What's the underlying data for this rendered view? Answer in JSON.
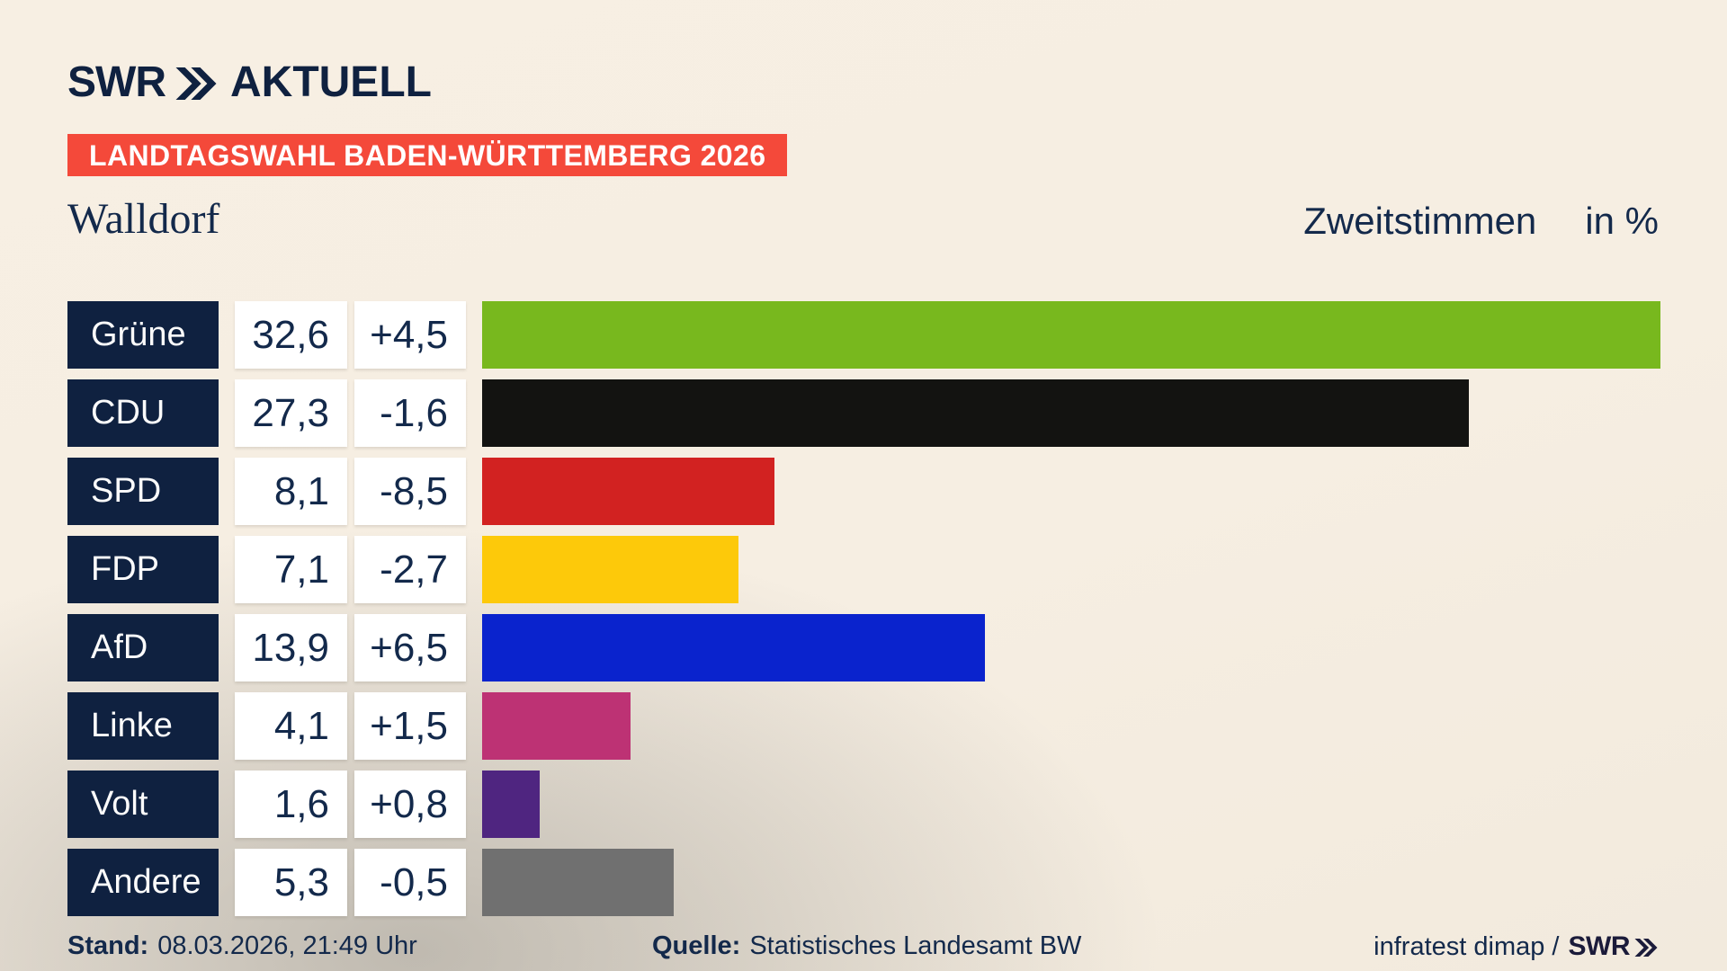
{
  "colors": {
    "background_cream": "#f6eee2",
    "background_shade": "#cfccc4",
    "navy_box": "#0f2140",
    "text_navy": "#13294b",
    "badge_red": "#f4493a",
    "box_white": "#ffffff"
  },
  "header": {
    "logo_swr": "SWR",
    "logo_suffix": "AKTUELL",
    "badge": "LANDTAGSWAHL BADEN-WÜRTTEMBERG 2026"
  },
  "title": {
    "region": "Walldorf",
    "measure": "Zweitstimmen",
    "unit": "in %"
  },
  "chart_data": {
    "type": "bar",
    "orientation": "horizontal",
    "title": "Walldorf — Zweitstimmen in %",
    "categories": [
      "Grüne",
      "CDU",
      "SPD",
      "FDP",
      "AfD",
      "Linke",
      "Volt",
      "Andere"
    ],
    "series": [
      {
        "name": "Zweitstimmen in %",
        "values": [
          32.6,
          27.3,
          8.1,
          7.1,
          13.9,
          4.1,
          1.6,
          5.3
        ]
      },
      {
        "name": "Veränderung in Prozentpunkten",
        "values": [
          4.5,
          -1.6,
          -8.5,
          -2.7,
          6.5,
          1.5,
          0.8,
          -0.5
        ]
      }
    ],
    "value_labels": [
      "32,6",
      "27,3",
      "8,1",
      "7,1",
      "13,9",
      "4,1",
      "1,6",
      "5,3"
    ],
    "change_labels": [
      "+4,5",
      "-1,6",
      "-8,5",
      "-2,7",
      "+6,5",
      "+1,5",
      "+0,8",
      "-0,5"
    ],
    "bar_colors": [
      "#78b81e",
      "#131311",
      "#d22221",
      "#fdc90a",
      "#0a23cd",
      "#bd3274",
      "#4f2580",
      "#707070"
    ],
    "xlim": [
      0,
      32.6
    ],
    "grid": false,
    "legend": false
  },
  "footer": {
    "stand_label": "Stand:",
    "stand_value": "08.03.2026, 21:49 Uhr",
    "source_label": "Quelle:",
    "source_value": "Statistisches Landesamt BW",
    "credit_text": "infratest dimap /",
    "credit_logo": "SWR"
  }
}
